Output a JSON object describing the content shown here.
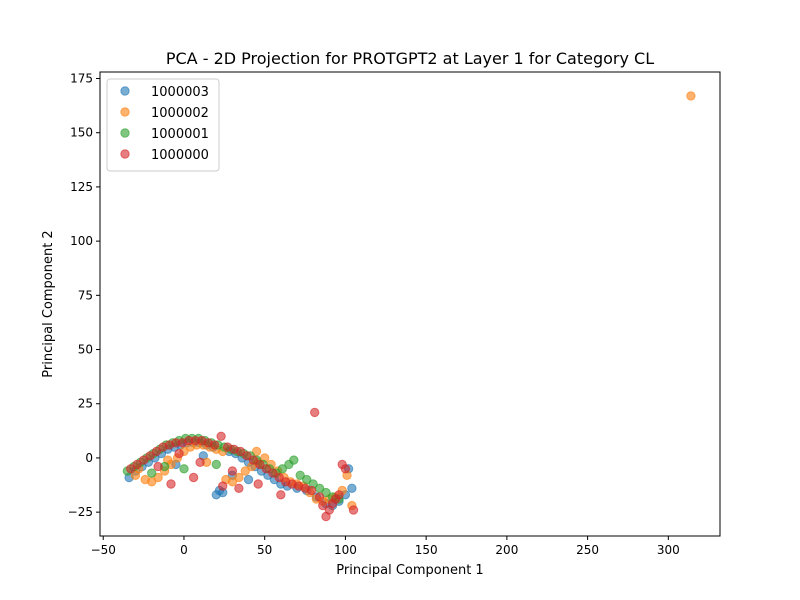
{
  "chart_data": {
    "type": "scatter",
    "title": "PCA - 2D Projection for PROTGPT2 at Layer 1 for Category CL",
    "xlabel": "Principal Component 1",
    "ylabel": "Principal Component 2",
    "xlim": [
      -52,
      332
    ],
    "ylim": [
      -36,
      178
    ],
    "xticks": [
      -50,
      0,
      50,
      100,
      150,
      200,
      250,
      300
    ],
    "yticks": [
      -25,
      0,
      25,
      50,
      75,
      100,
      125,
      150,
      175
    ],
    "grid": false,
    "legend_position": "top-left",
    "series": [
      {
        "name": "1000003",
        "color": "#1f77b4",
        "points": [
          [
            -34,
            -9
          ],
          [
            -30,
            -6
          ],
          [
            -26,
            -4
          ],
          [
            -22,
            -2
          ],
          [
            -18,
            0
          ],
          [
            -14,
            2
          ],
          [
            -10,
            4
          ],
          [
            -6,
            5
          ],
          [
            -2,
            6
          ],
          [
            2,
            7
          ],
          [
            6,
            7
          ],
          [
            10,
            7
          ],
          [
            14,
            6
          ],
          [
            18,
            5
          ],
          [
            20,
            -17
          ],
          [
            22,
            -15
          ],
          [
            24,
            -16
          ],
          [
            28,
            3
          ],
          [
            32,
            2
          ],
          [
            36,
            0
          ],
          [
            40,
            -2
          ],
          [
            44,
            -4
          ],
          [
            48,
            -6
          ],
          [
            52,
            -8
          ],
          [
            56,
            -10
          ],
          [
            60,
            -12
          ],
          [
            64,
            -13
          ],
          [
            70,
            -14
          ],
          [
            76,
            -15
          ],
          [
            82,
            -18
          ],
          [
            88,
            -21
          ],
          [
            92,
            -22
          ],
          [
            96,
            -20
          ],
          [
            100,
            -17
          ],
          [
            102,
            -5
          ],
          [
            104,
            -14
          ],
          [
            40,
            -10
          ],
          [
            30,
            -8
          ],
          [
            12,
            1
          ],
          [
            -5,
            -3
          ]
        ]
      },
      {
        "name": "1000002",
        "color": "#ff7f0e",
        "points": [
          [
            -30,
            -8
          ],
          [
            -24,
            -10
          ],
          [
            -20,
            -11
          ],
          [
            -16,
            -9
          ],
          [
            -12,
            -6
          ],
          [
            -8,
            -3
          ],
          [
            -4,
            0
          ],
          [
            0,
            3
          ],
          [
            4,
            5
          ],
          [
            8,
            6
          ],
          [
            12,
            6
          ],
          [
            16,
            5
          ],
          [
            20,
            4
          ],
          [
            24,
            3
          ],
          [
            26,
            -10
          ],
          [
            30,
            -11
          ],
          [
            34,
            -9
          ],
          [
            38,
            -6
          ],
          [
            42,
            -4
          ],
          [
            46,
            -2
          ],
          [
            50,
            0
          ],
          [
            54,
            -3
          ],
          [
            58,
            -6
          ],
          [
            62,
            -9
          ],
          [
            66,
            -11
          ],
          [
            70,
            -12
          ],
          [
            74,
            -13
          ],
          [
            78,
            -16
          ],
          [
            82,
            -19
          ],
          [
            86,
            -20
          ],
          [
            90,
            -19
          ],
          [
            94,
            -18
          ],
          [
            98,
            -15
          ],
          [
            101,
            -8
          ],
          [
            104,
            -22
          ],
          [
            -28,
            -5
          ],
          [
            -10,
            -1
          ],
          [
            14,
            -2
          ],
          [
            45,
            3
          ],
          [
            314,
            167
          ]
        ]
      },
      {
        "name": "1000001",
        "color": "#2ca02c",
        "points": [
          [
            -35,
            -6
          ],
          [
            -31,
            -4
          ],
          [
            -27,
            -2
          ],
          [
            -23,
            0
          ],
          [
            -19,
            2
          ],
          [
            -15,
            4
          ],
          [
            -11,
            6
          ],
          [
            -7,
            7
          ],
          [
            -3,
            8
          ],
          [
            1,
            9
          ],
          [
            5,
            9
          ],
          [
            9,
            9
          ],
          [
            13,
            8
          ],
          [
            17,
            7
          ],
          [
            21,
            6
          ],
          [
            25,
            5
          ],
          [
            29,
            4
          ],
          [
            33,
            3
          ],
          [
            37,
            2
          ],
          [
            41,
            1
          ],
          [
            45,
            -1
          ],
          [
            49,
            -3
          ],
          [
            53,
            -5
          ],
          [
            57,
            -7
          ],
          [
            61,
            -5
          ],
          [
            65,
            -3
          ],
          [
            68,
            -1
          ],
          [
            72,
            -8
          ],
          [
            76,
            -10
          ],
          [
            80,
            -12
          ],
          [
            84,
            -14
          ],
          [
            88,
            -16
          ],
          [
            92,
            -18
          ],
          [
            96,
            -19
          ],
          [
            -20,
            -7
          ],
          [
            0,
            -5
          ],
          [
            20,
            -3
          ],
          [
            -12,
            -4
          ]
        ]
      },
      {
        "name": "1000000",
        "color": "#d62728",
        "points": [
          [
            -33,
            -5
          ],
          [
            -29,
            -3
          ],
          [
            -25,
            -1
          ],
          [
            -21,
            1
          ],
          [
            -17,
            3
          ],
          [
            -13,
            5
          ],
          [
            -9,
            6
          ],
          [
            -5,
            7
          ],
          [
            -1,
            7
          ],
          [
            3,
            8
          ],
          [
            7,
            8
          ],
          [
            11,
            8
          ],
          [
            15,
            7
          ],
          [
            19,
            6
          ],
          [
            23,
            10
          ],
          [
            27,
            5
          ],
          [
            31,
            4
          ],
          [
            35,
            3
          ],
          [
            39,
            1
          ],
          [
            43,
            -1
          ],
          [
            47,
            -3
          ],
          [
            51,
            -5
          ],
          [
            55,
            -7
          ],
          [
            59,
            -9
          ],
          [
            63,
            -11
          ],
          [
            67,
            -12
          ],
          [
            71,
            -13
          ],
          [
            75,
            -14
          ],
          [
            79,
            -15
          ],
          [
            81,
            21
          ],
          [
            84,
            -18
          ],
          [
            86,
            -22
          ],
          [
            88,
            -27
          ],
          [
            90,
            -24
          ],
          [
            92,
            -21
          ],
          [
            94,
            -19
          ],
          [
            96,
            -17
          ],
          [
            98,
            -3
          ],
          [
            100,
            -5
          ],
          [
            105,
            -24
          ],
          [
            -8,
            -12
          ],
          [
            6,
            -9
          ],
          [
            24,
            -13
          ],
          [
            34,
            -14
          ],
          [
            46,
            -12
          ],
          [
            60,
            -17
          ],
          [
            -16,
            -4
          ],
          [
            10,
            -2
          ],
          [
            30,
            -6
          ],
          [
            -3,
            2
          ]
        ]
      }
    ]
  }
}
